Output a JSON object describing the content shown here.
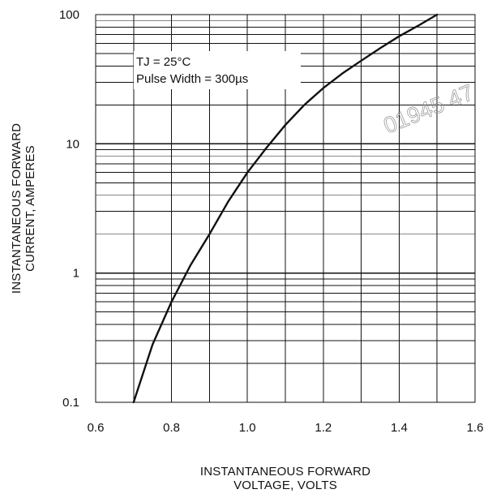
{
  "chart_data": {
    "type": "line",
    "title": "",
    "xlabel": [
      "INSTANTANEOUS FORWARD",
      "VOLTAGE, VOLTS"
    ],
    "ylabel": [
      "INSTANTANEOUS FORWARD",
      "CURRENT, AMPERES"
    ],
    "xscale": "linear",
    "yscale": "log",
    "xlim": [
      0.6,
      1.6
    ],
    "ylim": [
      0.1,
      100
    ],
    "xticks": [
      0.6,
      0.8,
      1.0,
      1.2,
      1.4,
      1.6
    ],
    "xtick_labels": [
      "0.6",
      "0.8",
      "1.0",
      "1.2",
      "1.4",
      "1.6"
    ],
    "yticks": [
      0.1,
      1,
      10,
      100
    ],
    "ytick_labels": [
      "0.1",
      "1",
      "10",
      "100"
    ],
    "grid": true,
    "annotations": [
      "TJ = 25°C",
      "Pulse Width = 300µs"
    ],
    "watermark_text": "01945 47",
    "series": [
      {
        "x": [
          0.7,
          0.75,
          0.8,
          0.85,
          0.9,
          0.95,
          1.0,
          1.05,
          1.1,
          1.15,
          1.2,
          1.25,
          1.3,
          1.35,
          1.4,
          1.45,
          1.5
        ],
        "values": [
          0.1,
          0.28,
          0.6,
          1.15,
          2.0,
          3.6,
          6.0,
          9.3,
          14,
          20,
          27,
          35,
          44,
          55,
          68,
          82,
          100
        ]
      }
    ]
  },
  "colors": {
    "background": "#ffffff",
    "axis": "#111111",
    "grid": "#111111",
    "curve": "#111111",
    "watermark": "#9a9a9a"
  }
}
